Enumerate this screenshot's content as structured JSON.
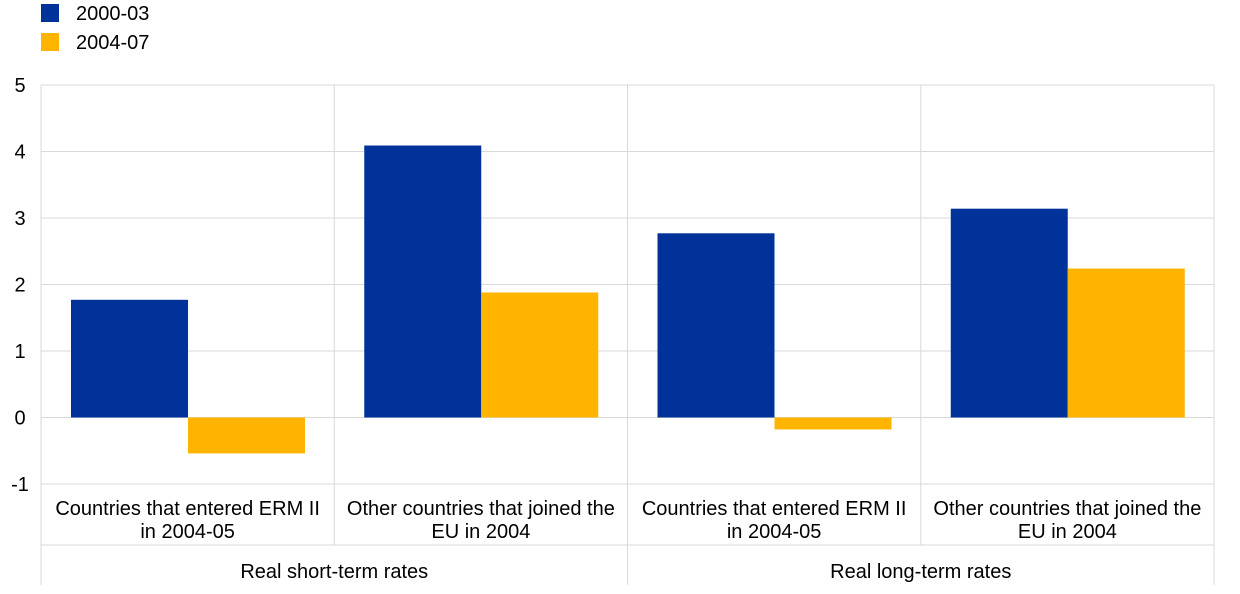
{
  "chart_data": {
    "type": "bar",
    "title": "",
    "xlabel": "",
    "ylabel": "",
    "ylim": [
      -1,
      5
    ],
    "yticks": [
      "5",
      "4",
      "3",
      "2",
      "1",
      "0",
      "-1"
    ],
    "grid": true,
    "legend_position": "top-left",
    "groups": [
      {
        "label": "Real short-term rates",
        "categories": [
          "Countries that entered ERM II in 2004-05",
          "Other countries that joined the EU in 2004"
        ]
      },
      {
        "label": "Real long-term rates",
        "categories": [
          "Countries that entered ERM II in 2004-05",
          "Other countries that joined the EU in 2004"
        ]
      }
    ],
    "category_lines": [
      [
        "Countries that entered ERM II",
        "in 2004-05"
      ],
      [
        "Other countries that joined the",
        "EU in 2004"
      ],
      [
        "Countries that entered ERM II",
        "in 2004-05"
      ],
      [
        "Other countries that joined the",
        "EU in 2004"
      ]
    ],
    "series": [
      {
        "name": "2000-03",
        "color": "#003299",
        "values": [
          1.77,
          4.09,
          2.77,
          3.14
        ]
      },
      {
        "name": "2004-07",
        "color": "#FFB400",
        "values": [
          -0.54,
          1.88,
          -0.18,
          2.24
        ]
      }
    ]
  }
}
